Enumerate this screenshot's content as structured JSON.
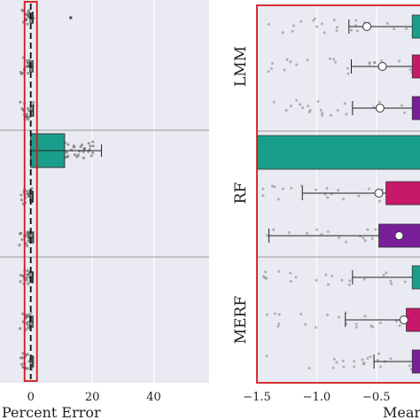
{
  "chart_data": [
    {
      "type": "bar",
      "xlabel": "Percent Error",
      "xlim": [
        -10,
        58
      ],
      "xticks": [
        0,
        20,
        40
      ],
      "xtick_labels": [
        "0",
        "20",
        "40"
      ],
      "grid": true,
      "reference_band_x": 0,
      "rows": [
        {
          "bar": -0.3,
          "err_lo": -0.8,
          "err_hi": 0.6,
          "color": "#8a8a8a"
        },
        {
          "bar": -0.4,
          "err_lo": -1.0,
          "err_hi": 0.7,
          "color": "#8a8a8a"
        },
        {
          "bar": -0.2,
          "err_lo": -1.0,
          "err_hi": 0.8,
          "color": "#8a8a8a"
        },
        {
          "bar": 11.0,
          "err_lo": 0.0,
          "err_hi": 23.0,
          "color": "#1a9e8c"
        },
        {
          "bar": -0.3,
          "err_lo": -0.8,
          "err_hi": 0.6,
          "color": "#8a8a8a"
        },
        {
          "bar": -0.5,
          "err_lo": -1.0,
          "err_hi": 0.9,
          "color": "#8a8a8a"
        },
        {
          "bar": -0.3,
          "err_lo": -0.9,
          "err_hi": 0.6,
          "color": "#8a8a8a"
        },
        {
          "bar": -0.4,
          "err_lo": -1.0,
          "err_hi": 0.7,
          "color": "#8a8a8a"
        },
        {
          "bar": -0.2,
          "err_lo": -0.9,
          "err_hi": 0.6,
          "color": "#8a8a8a"
        }
      ],
      "outlier_points": [
        {
          "row": 0,
          "x": 13.0
        }
      ]
    },
    {
      "type": "bar",
      "xlabel": "Mear",
      "xlim": [
        -1.5,
        -0.15
      ],
      "xticks": [
        -1.5,
        -1.0,
        -0.5
      ],
      "xtick_labels": [
        "−1.5",
        "−1.0",
        "−0.5"
      ],
      "grid": true,
      "groups": [
        "LMM",
        "RF",
        "MERF"
      ],
      "rows": [
        {
          "group": "LMM",
          "bar_start": -0.2,
          "mean": -0.58,
          "err_lo": -0.73,
          "color": "#1a9e8c"
        },
        {
          "group": "LMM",
          "bar_start": -0.2,
          "mean": -0.45,
          "err_lo": -0.71,
          "color": "#c8186a"
        },
        {
          "group": "LMM",
          "bar_start": -0.2,
          "mean": -0.47,
          "err_lo": -0.7,
          "color": "#7a1f9a"
        },
        {
          "group": "RF",
          "bar_start": -1.5,
          "mean": null,
          "err_lo": null,
          "color": "#1a9e8c"
        },
        {
          "group": "RF",
          "bar_start": -0.42,
          "mean": -0.48,
          "err_lo": -1.12,
          "color": "#c8186a"
        },
        {
          "group": "RF",
          "bar_start": -0.48,
          "mean": -0.31,
          "err_lo": -1.4,
          "color": "#7a1f9a"
        },
        {
          "group": "MERF",
          "bar_start": -0.2,
          "mean": null,
          "err_lo": -0.7,
          "color": "#1a9e8c"
        },
        {
          "group": "MERF",
          "bar_start": -0.25,
          "mean": -0.27,
          "err_lo": -0.76,
          "color": "#c8186a"
        },
        {
          "group": "MERF",
          "bar_start": -0.2,
          "mean": null,
          "err_lo": -0.52,
          "color": "#7a1f9a"
        }
      ]
    }
  ]
}
